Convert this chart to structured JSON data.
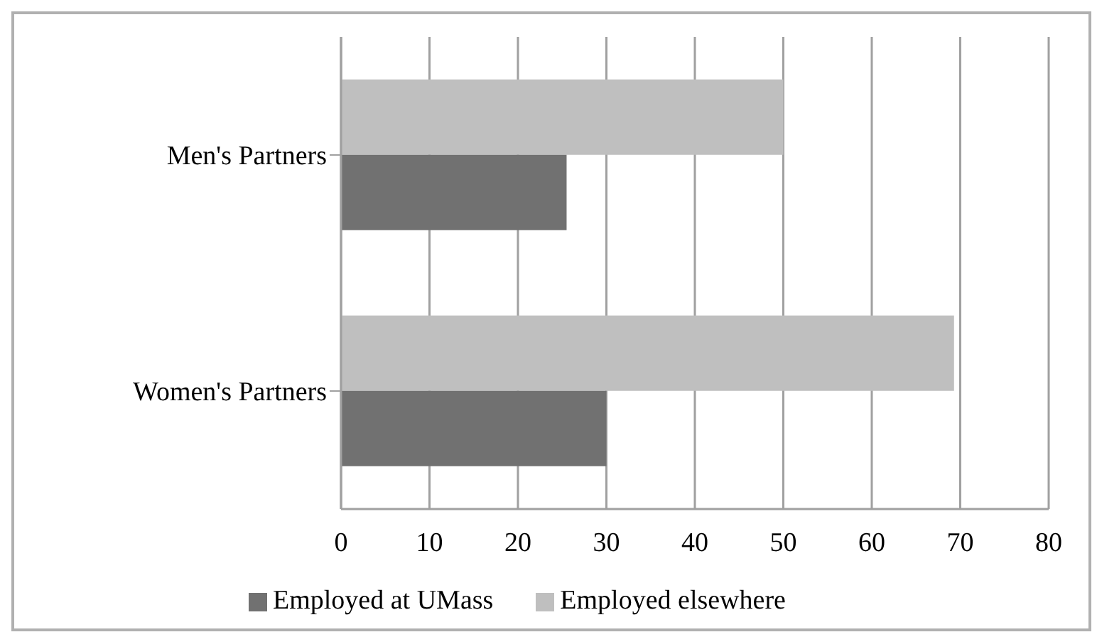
{
  "chart_data": {
    "type": "bar",
    "orientation": "horizontal",
    "categories": [
      "Men's Partners",
      "Women's Partners"
    ],
    "series": [
      {
        "name": "Employed elsewhere",
        "color": "#bfbfbf",
        "values": [
          50,
          69.3
        ]
      },
      {
        "name": "Employed at UMass",
        "color": "#717171",
        "values": [
          25.5,
          30
        ]
      }
    ],
    "xlim": [
      0,
      80
    ],
    "xticks": [
      0,
      10,
      20,
      30,
      40,
      50,
      60,
      70,
      80
    ],
    "grid": "x",
    "legend": "bottom"
  }
}
